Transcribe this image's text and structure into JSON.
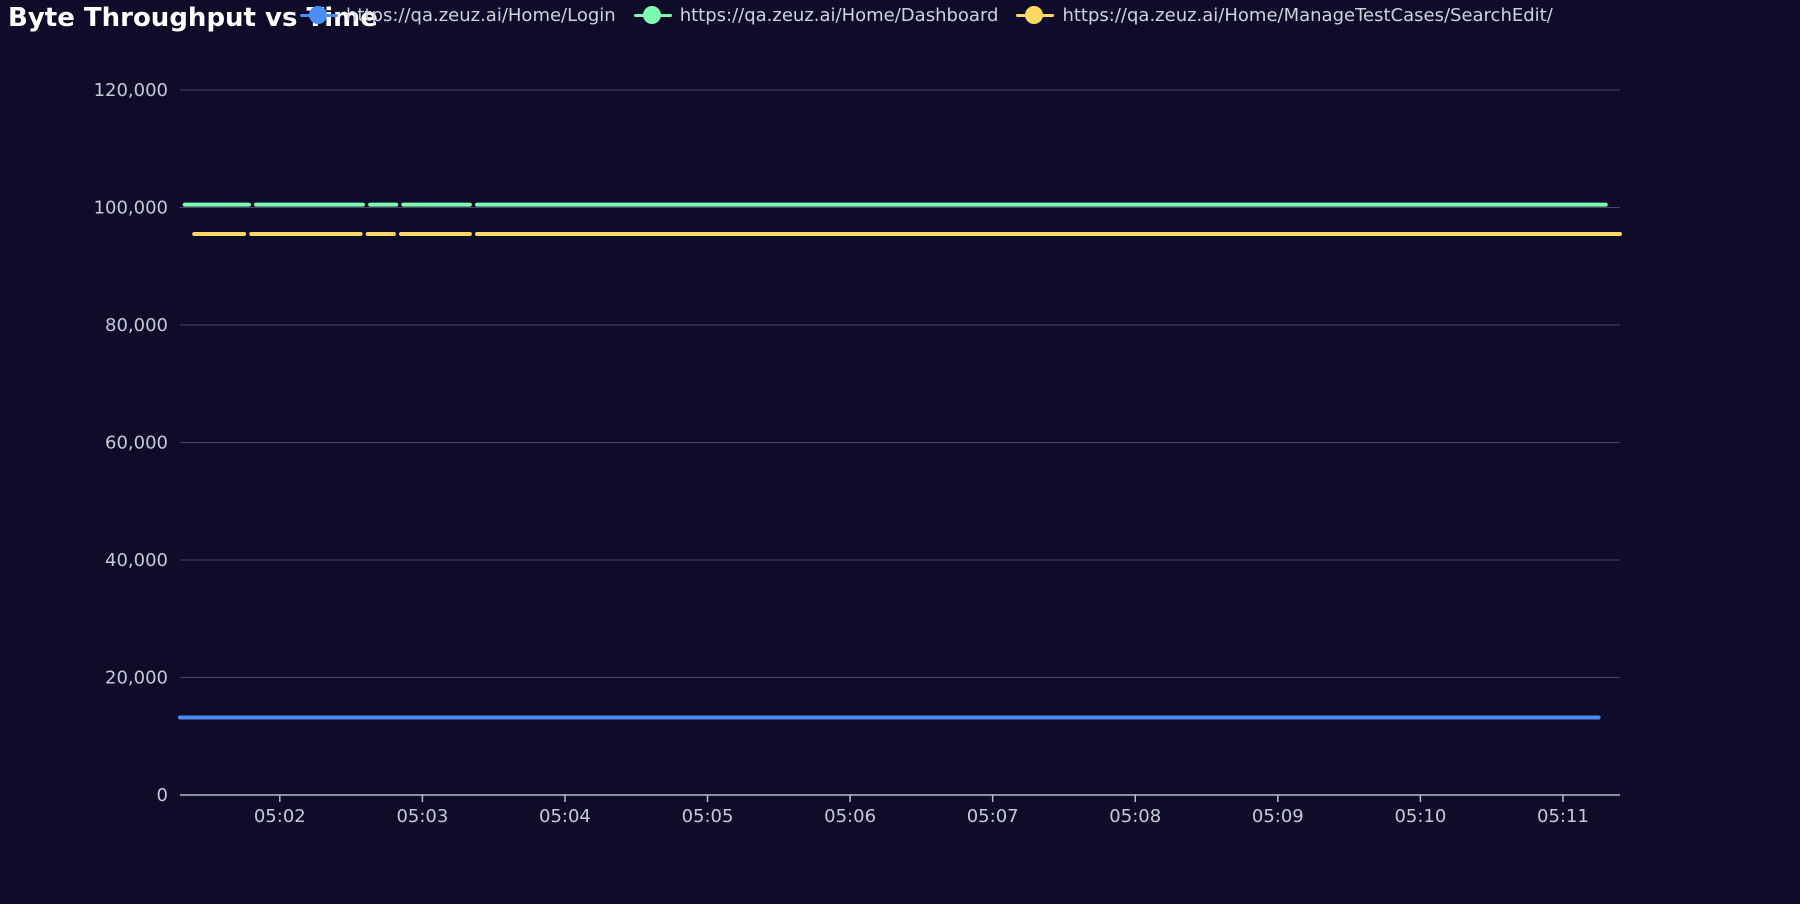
{
  "chart_data": {
    "type": "line",
    "title": "Byte Throughput vs Time",
    "xlabel": "",
    "ylabel": "",
    "ylim": [
      0,
      120000
    ],
    "yticks": [
      "0",
      "20,000",
      "40,000",
      "60,000",
      "80,000",
      "100,000",
      "120,000"
    ],
    "xlim": [
      "05:01:18",
      "05:11:24"
    ],
    "xticks": [
      "05:02",
      "05:03",
      "05:04",
      "05:05",
      "05:06",
      "05:07",
      "05:08",
      "05:09",
      "05:10",
      "05:11"
    ],
    "grid": true,
    "legend_position": "top",
    "series": [
      {
        "name": "https://qa.zeuz.ai/Home/Login",
        "color": "#4c8df5",
        "points": [
          [
            "05:01:18",
            13200
          ],
          [
            "05:11:15",
            13200
          ]
        ]
      },
      {
        "name": "https://qa.zeuz.ai/Home/Dashboard",
        "color": "#7dfcb1",
        "points": [
          [
            "05:01:20",
            100500
          ],
          [
            "05:01:47",
            100500
          ],
          [
            "05:01:50",
            100500
          ],
          [
            "05:02:35",
            100500
          ],
          [
            "05:02:38",
            100500
          ],
          [
            "05:02:49",
            100500
          ],
          [
            "05:02:52",
            100500
          ],
          [
            "05:03:20",
            100500
          ],
          [
            "05:03:23",
            100500
          ],
          [
            "05:11:18",
            100500
          ]
        ]
      },
      {
        "name": "https://qa.zeuz.ai/Home/ManageTestCases/SearchEdit/",
        "color": "#fdd865",
        "points": [
          [
            "05:01:24",
            95500
          ],
          [
            "05:01:45",
            95500
          ],
          [
            "05:01:48",
            95500
          ],
          [
            "05:02:34",
            95500
          ],
          [
            "05:02:37",
            95500
          ],
          [
            "05:02:48",
            95500
          ],
          [
            "05:02:51",
            95500
          ],
          [
            "05:03:20",
            95500
          ],
          [
            "05:03:23",
            95500
          ],
          [
            "05:11:24",
            95500
          ]
        ]
      }
    ]
  }
}
